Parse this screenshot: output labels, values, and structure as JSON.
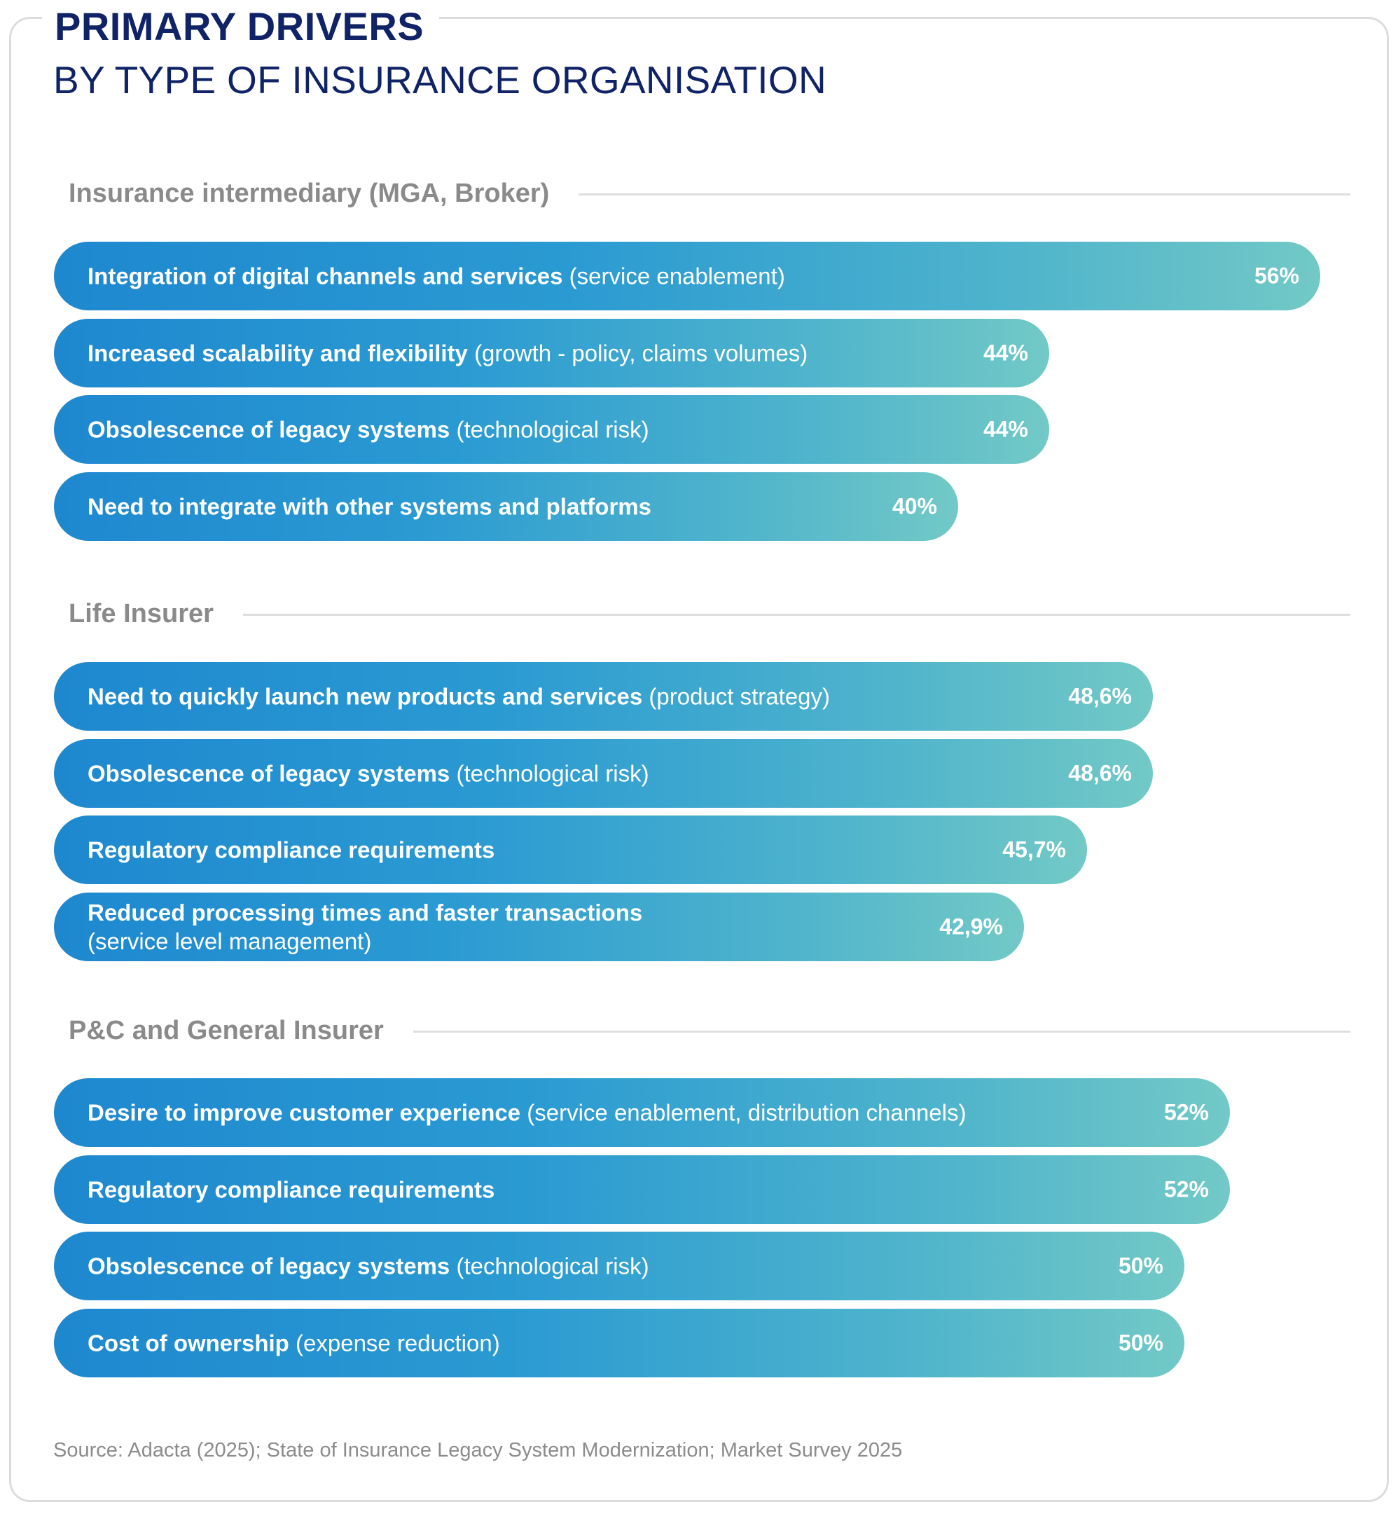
{
  "header": {
    "title": "PRIMARY DRIVERS",
    "subtitle": "BY TYPE OF INSURANCE ORGANISATION"
  },
  "chart_data": {
    "type": "bar",
    "orientation": "horizontal",
    "unit": "%",
    "xlim": [
      0,
      60
    ],
    "colors": {
      "bar_start": "#1e88cf",
      "bar_end": "#72c9c6",
      "title": "#0f2366",
      "section": "#8a8a8a"
    },
    "groups": [
      {
        "name": "Insurance intermediary (MGA, Broker)",
        "items": [
          {
            "lead": "Integration of digital channels and services",
            "detail": "(service enablement)",
            "value": 56,
            "value_label": "56%"
          },
          {
            "lead": "Increased scalability and flexibility",
            "detail": "(growth - policy, claims volumes)",
            "value": 44,
            "value_label": "44%"
          },
          {
            "lead": "Obsolescence of legacy systems",
            "detail": "(technological risk)",
            "value": 44,
            "value_label": "44%"
          },
          {
            "lead": "Need to integrate with other systems and platforms",
            "detail": "",
            "value": 40,
            "value_label": "40%"
          }
        ]
      },
      {
        "name": "Life Insurer",
        "items": [
          {
            "lead": "Need to quickly launch new products and services",
            "detail": "(product strategy)",
            "value": 48.6,
            "value_label": "48,6%"
          },
          {
            "lead": "Obsolescence of legacy systems",
            "detail": "(technological risk)",
            "value": 48.6,
            "value_label": "48,6%"
          },
          {
            "lead": "Regulatory compliance requirements",
            "detail": "",
            "value": 45.7,
            "value_label": "45,7%"
          },
          {
            "lead": "Reduced processing times and faster transactions",
            "detail": "(service level management)",
            "detail_on_new_line": true,
            "value": 42.9,
            "value_label": "42,9%"
          }
        ]
      },
      {
        "name": "P&C and General Insurer",
        "items": [
          {
            "lead": "Desire to improve customer experience",
            "detail": "(service enablement, distribution channels)",
            "value": 52,
            "value_label": "52%"
          },
          {
            "lead": "Regulatory compliance requirements",
            "detail": "",
            "value": 52,
            "value_label": "52%"
          },
          {
            "lead": "Obsolescence of legacy systems",
            "detail": "(technological risk)",
            "value": 50,
            "value_label": "50%"
          },
          {
            "lead": "Cost of ownership",
            "detail": "(expense reduction)",
            "value": 50,
            "value_label": "50%"
          }
        ]
      }
    ]
  },
  "footer": {
    "source": "Source: Adacta (2025); State of Insurance Legacy System Modernization; Market Survey 2025"
  }
}
